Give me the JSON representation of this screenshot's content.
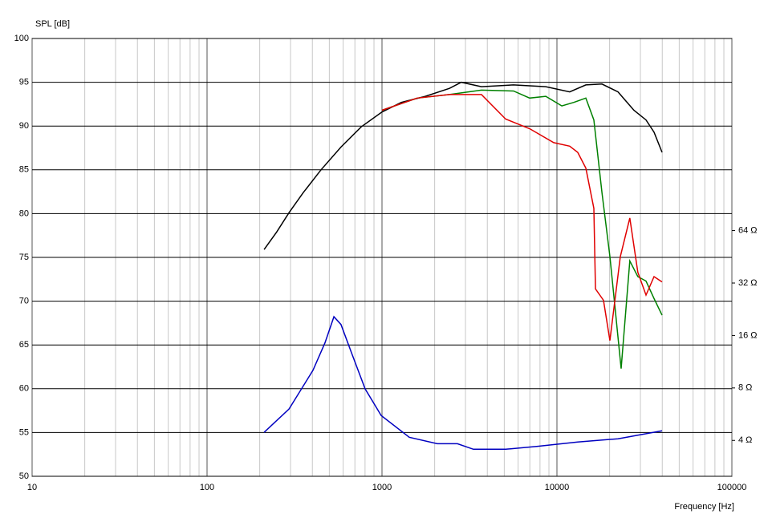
{
  "chart_data": {
    "type": "line",
    "y_label": "SPL [dB]",
    "x_label": "Frequency [Hz]",
    "xscale": "log",
    "xlim": [
      10,
      100000
    ],
    "xticks": [
      10,
      100,
      1000,
      10000,
      100000
    ],
    "ylim": [
      50,
      100
    ],
    "yticks": [
      50,
      55,
      60,
      65,
      70,
      75,
      80,
      85,
      90,
      95,
      100
    ],
    "y2scale": "log",
    "y2lim": [
      2.49,
      810
    ],
    "y2ticks": [
      {
        "value": 4,
        "label": "4 Ω"
      },
      {
        "value": 8,
        "label": "8 Ω"
      },
      {
        "value": 16,
        "label": "16 Ω"
      },
      {
        "value": 32,
        "label": "32 Ω"
      },
      {
        "value": 64,
        "label": "64 Ω"
      }
    ],
    "grid": true,
    "series": [
      {
        "color": "#000000",
        "x": [
          212,
          250,
          294,
          355,
          448,
          583,
          760,
          1000,
          1290,
          1770,
          2430,
          2840,
          3700,
          5650,
          8630,
          11830,
          14620,
          18080,
          22340,
          27540,
          32300,
          35900,
          39900
        ],
        "values": [
          75.9,
          77.9,
          80.1,
          82.4,
          85.0,
          87.6,
          89.9,
          91.6,
          92.7,
          93.4,
          94.3,
          95.0,
          94.5,
          94.7,
          94.5,
          93.9,
          94.7,
          94.8,
          93.9,
          91.8,
          90.7,
          89.3,
          87.0
        ]
      },
      {
        "color": "#008000",
        "x": [
          1000,
          1590,
          2430,
          3700,
          5650,
          6980,
          8630,
          10660,
          12480,
          14620,
          16250,
          18080,
          20090,
          23290,
          26100,
          29000,
          32300,
          35900,
          39900
        ],
        "values": [
          91.8,
          93.2,
          93.6,
          94.1,
          94.0,
          93.2,
          93.4,
          92.3,
          92.7,
          93.2,
          90.7,
          82.4,
          75.1,
          62.3,
          74.6,
          72.8,
          72.3,
          70.3,
          68.4
        ]
      },
      {
        "color": "#e00000",
        "x": [
          1000,
          1590,
          2430,
          3700,
          5090,
          6980,
          9590,
          11830,
          13150,
          14620,
          16250,
          16600,
          18450,
          20090,
          23030,
          26100,
          29000,
          32300,
          35900,
          39900
        ],
        "values": [
          91.8,
          93.2,
          93.6,
          93.6,
          90.8,
          89.7,
          88.1,
          87.7,
          87.0,
          85.2,
          80.6,
          71.4,
          70.1,
          65.5,
          75.1,
          79.5,
          73.3,
          70.7,
          72.8,
          72.2
        ]
      },
      {
        "color": "#0000c0",
        "axis": "y2",
        "x": [
          212,
          294,
          403,
          472,
          531,
          583,
          670,
          801,
          990,
          1430,
          2070,
          2700,
          3330,
          5090,
          7760,
          13150,
          22340,
          39900
        ],
        "values": [
          4.45,
          6.05,
          10.1,
          14.5,
          20.5,
          18.5,
          12.7,
          7.9,
          5.56,
          4.17,
          3.83,
          3.83,
          3.56,
          3.56,
          3.7,
          3.92,
          4.09,
          4.54
        ]
      }
    ]
  }
}
